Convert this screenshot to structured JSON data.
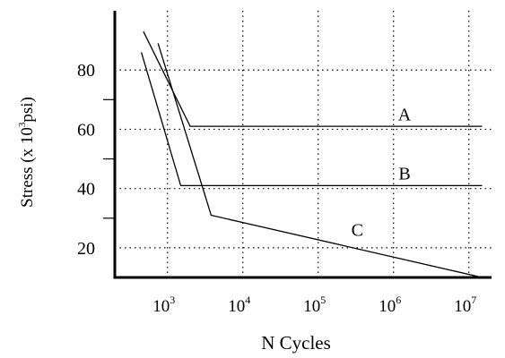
{
  "chart_data": {
    "type": "line",
    "title": "",
    "xlabel": "N Cycles",
    "ylabel_prefix": "Stress (x 10",
    "ylabel_sup": "3",
    "ylabel_suffix": "psi)",
    "x_scale": "log",
    "xlim": [
      200,
      20000000
    ],
    "ylim": [
      10,
      100
    ],
    "x_ticks": [
      {
        "value": 1000,
        "base": "10",
        "exp": "3"
      },
      {
        "value": 10000,
        "base": "10",
        "exp": "4"
      },
      {
        "value": 100000,
        "base": "10",
        "exp": "5"
      },
      {
        "value": 1000000,
        "base": "10",
        "exp": "6"
      },
      {
        "value": 10000000,
        "base": "10",
        "exp": "7"
      }
    ],
    "y_ticks": [
      {
        "value": 20,
        "label": "20"
      },
      {
        "value": 40,
        "label": "40"
      },
      {
        "value": 60,
        "label": "60"
      },
      {
        "value": 80,
        "label": "80"
      }
    ],
    "y_minor_ticks": [
      30,
      50,
      70
    ],
    "grid": true,
    "grid_style": "dotted",
    "legend": "none",
    "line_color": "#000000",
    "series": [
      {
        "name": "A",
        "points": [
          [
            480,
            93
          ],
          [
            2000,
            61
          ],
          [
            15000000,
            61
          ]
        ],
        "label_at": [
          1400000,
          63
        ]
      },
      {
        "name": "B",
        "points": [
          [
            450,
            86
          ],
          [
            1500,
            41
          ],
          [
            15000000,
            41
          ]
        ],
        "label_at": [
          1400000,
          43
        ]
      },
      {
        "name": "C",
        "points": [
          [
            750,
            89
          ],
          [
            3800,
            31
          ],
          [
            15000000,
            10
          ]
        ],
        "label_at": [
          330000,
          24
        ]
      }
    ]
  }
}
